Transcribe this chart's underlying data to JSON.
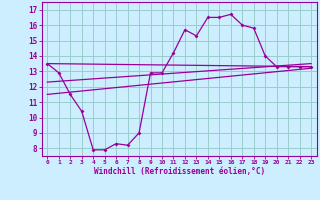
{
  "x_ticks": [
    0,
    1,
    2,
    3,
    4,
    5,
    6,
    7,
    8,
    9,
    10,
    11,
    12,
    13,
    14,
    15,
    16,
    17,
    18,
    19,
    20,
    21,
    22,
    23
  ],
  "xlabel": "Windchill (Refroidissement éolien,°C)",
  "ylim": [
    7.5,
    17.5
  ],
  "xlim": [
    -0.5,
    23.5
  ],
  "bg_color": "#cceeff",
  "line_color": "#990099",
  "grid_color": "#99cccc",
  "curve1_x": [
    0,
    1,
    2,
    3,
    4,
    5,
    6,
    7,
    8,
    9,
    10,
    11,
    12,
    13,
    14,
    15,
    16,
    17,
    18,
    19,
    20,
    21,
    22,
    23
  ],
  "curve1_y": [
    13.5,
    12.9,
    11.5,
    10.4,
    7.9,
    7.9,
    8.3,
    8.2,
    9.0,
    12.9,
    12.9,
    14.2,
    15.7,
    15.3,
    16.5,
    16.5,
    16.7,
    16.0,
    15.8,
    14.0,
    13.3,
    13.3,
    13.3,
    13.3
  ],
  "line2_x": [
    0,
    23
  ],
  "line2_y": [
    13.5,
    13.3
  ],
  "line3_x": [
    0,
    23
  ],
  "line3_y": [
    12.3,
    13.5
  ],
  "line4_x": [
    0,
    23
  ],
  "line4_y": [
    11.5,
    13.2
  ],
  "yticks": [
    8,
    9,
    10,
    11,
    12,
    13,
    14,
    15,
    16,
    17
  ]
}
